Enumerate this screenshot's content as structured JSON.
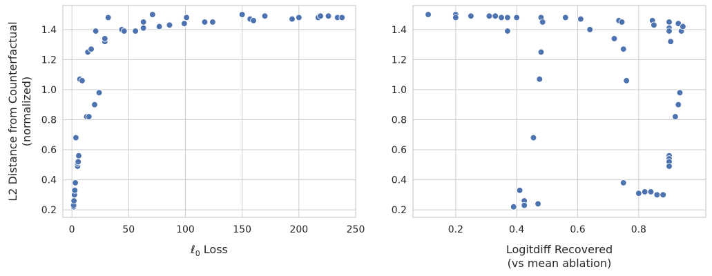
{
  "chart_data": [
    {
      "type": "scatter",
      "xlabel": "ℓ0 Loss",
      "xlabel_main": "ℓ",
      "xlabel_sub": "0",
      "xlabel_rest": " Loss",
      "ylabel": [
        "L2 Distance from Counterfactual",
        "(normalized)"
      ],
      "xlim": [
        -8,
        250
      ],
      "ylim": [
        0.15,
        1.56
      ],
      "xticks": [
        0,
        50,
        100,
        150,
        200,
        250
      ],
      "yticks": [
        0.2,
        0.4,
        0.6,
        0.8,
        1.0,
        1.2,
        1.4
      ],
      "grid": true,
      "marker_color": "#4c72b0",
      "points": [
        [
          1.5,
          0.22
        ],
        [
          1.5,
          0.23
        ],
        [
          1.8,
          0.26
        ],
        [
          2.2,
          0.3
        ],
        [
          2.5,
          0.33
        ],
        [
          3,
          0.38
        ],
        [
          3.5,
          0.68
        ],
        [
          5,
          0.49
        ],
        [
          5,
          0.51
        ],
        [
          5.5,
          0.52
        ],
        [
          6,
          0.56
        ],
        [
          7,
          1.07
        ],
        [
          9,
          1.06
        ],
        [
          13,
          0.82
        ],
        [
          14,
          1.25
        ],
        [
          15,
          0.82
        ],
        [
          17,
          1.27
        ],
        [
          20,
          0.9
        ],
        [
          21,
          1.39
        ],
        [
          24,
          0.98
        ],
        [
          29,
          1.32
        ],
        [
          29,
          1.34
        ],
        [
          32,
          1.48
        ],
        [
          44,
          1.4
        ],
        [
          46,
          1.39
        ],
        [
          56,
          1.39
        ],
        [
          63,
          1.41
        ],
        [
          63,
          1.45
        ],
        [
          71,
          1.5
        ],
        [
          77,
          1.42
        ],
        [
          86,
          1.43
        ],
        [
          99,
          1.44
        ],
        [
          101,
          1.48
        ],
        [
          117,
          1.45
        ],
        [
          124,
          1.45
        ],
        [
          150,
          1.5
        ],
        [
          157,
          1.47
        ],
        [
          160,
          1.46
        ],
        [
          170,
          1.49
        ],
        [
          194,
          1.47
        ],
        [
          200,
          1.48
        ],
        [
          217,
          1.48
        ],
        [
          219,
          1.49
        ],
        [
          226,
          1.49
        ],
        [
          234,
          1.48
        ],
        [
          238,
          1.48
        ]
      ]
    },
    {
      "type": "scatter",
      "xlabel": [
        "Logitdiff Recovered",
        "(vs mean ablation)"
      ],
      "ylabel": "",
      "xlim": [
        0.06,
        1.02
      ],
      "ylim": [
        0.15,
        1.56
      ],
      "xticks": [
        0.2,
        0.4,
        0.6,
        0.8
      ],
      "xtick_labels": [
        "0.2",
        "0.4",
        "0.6",
        "0.8"
      ],
      "yticks": [
        0.2,
        0.4,
        0.6,
        0.8,
        1.0,
        1.2,
        1.4
      ],
      "grid": true,
      "marker_color": "#4c72b0",
      "points": [
        [
          0.11,
          1.5
        ],
        [
          0.2,
          1.5
        ],
        [
          0.2,
          1.48
        ],
        [
          0.25,
          1.49
        ],
        [
          0.31,
          1.49
        ],
        [
          0.33,
          1.49
        ],
        [
          0.35,
          1.48
        ],
        [
          0.37,
          1.48
        ],
        [
          0.4,
          1.48
        ],
        [
          0.37,
          1.39
        ],
        [
          0.48,
          1.48
        ],
        [
          0.485,
          1.45
        ],
        [
          0.56,
          1.48
        ],
        [
          0.61,
          1.47
        ],
        [
          0.64,
          1.4
        ],
        [
          0.72,
          1.34
        ],
        [
          0.735,
          1.46
        ],
        [
          0.745,
          1.45
        ],
        [
          0.75,
          1.27
        ],
        [
          0.76,
          1.06
        ],
        [
          0.48,
          1.25
        ],
        [
          0.475,
          1.07
        ],
        [
          0.845,
          1.46
        ],
        [
          0.85,
          1.43
        ],
        [
          0.9,
          1.45
        ],
        [
          0.9,
          1.41
        ],
        [
          0.9,
          1.39
        ],
        [
          0.905,
          1.32
        ],
        [
          0.93,
          1.44
        ],
        [
          0.94,
          1.39
        ],
        [
          0.945,
          1.42
        ],
        [
          0.935,
          0.98
        ],
        [
          0.93,
          0.9
        ],
        [
          0.92,
          0.82
        ],
        [
          0.75,
          0.38
        ],
        [
          0.455,
          0.68
        ],
        [
          0.9,
          0.56
        ],
        [
          0.9,
          0.54
        ],
        [
          0.9,
          0.52
        ],
        [
          0.9,
          0.49
        ],
        [
          0.8,
          0.31
        ],
        [
          0.82,
          0.32
        ],
        [
          0.84,
          0.32
        ],
        [
          0.86,
          0.3
        ],
        [
          0.88,
          0.3
        ],
        [
          0.41,
          0.33
        ],
        [
          0.425,
          0.26
        ],
        [
          0.425,
          0.23
        ],
        [
          0.47,
          0.24
        ],
        [
          0.39,
          0.22
        ]
      ]
    }
  ]
}
